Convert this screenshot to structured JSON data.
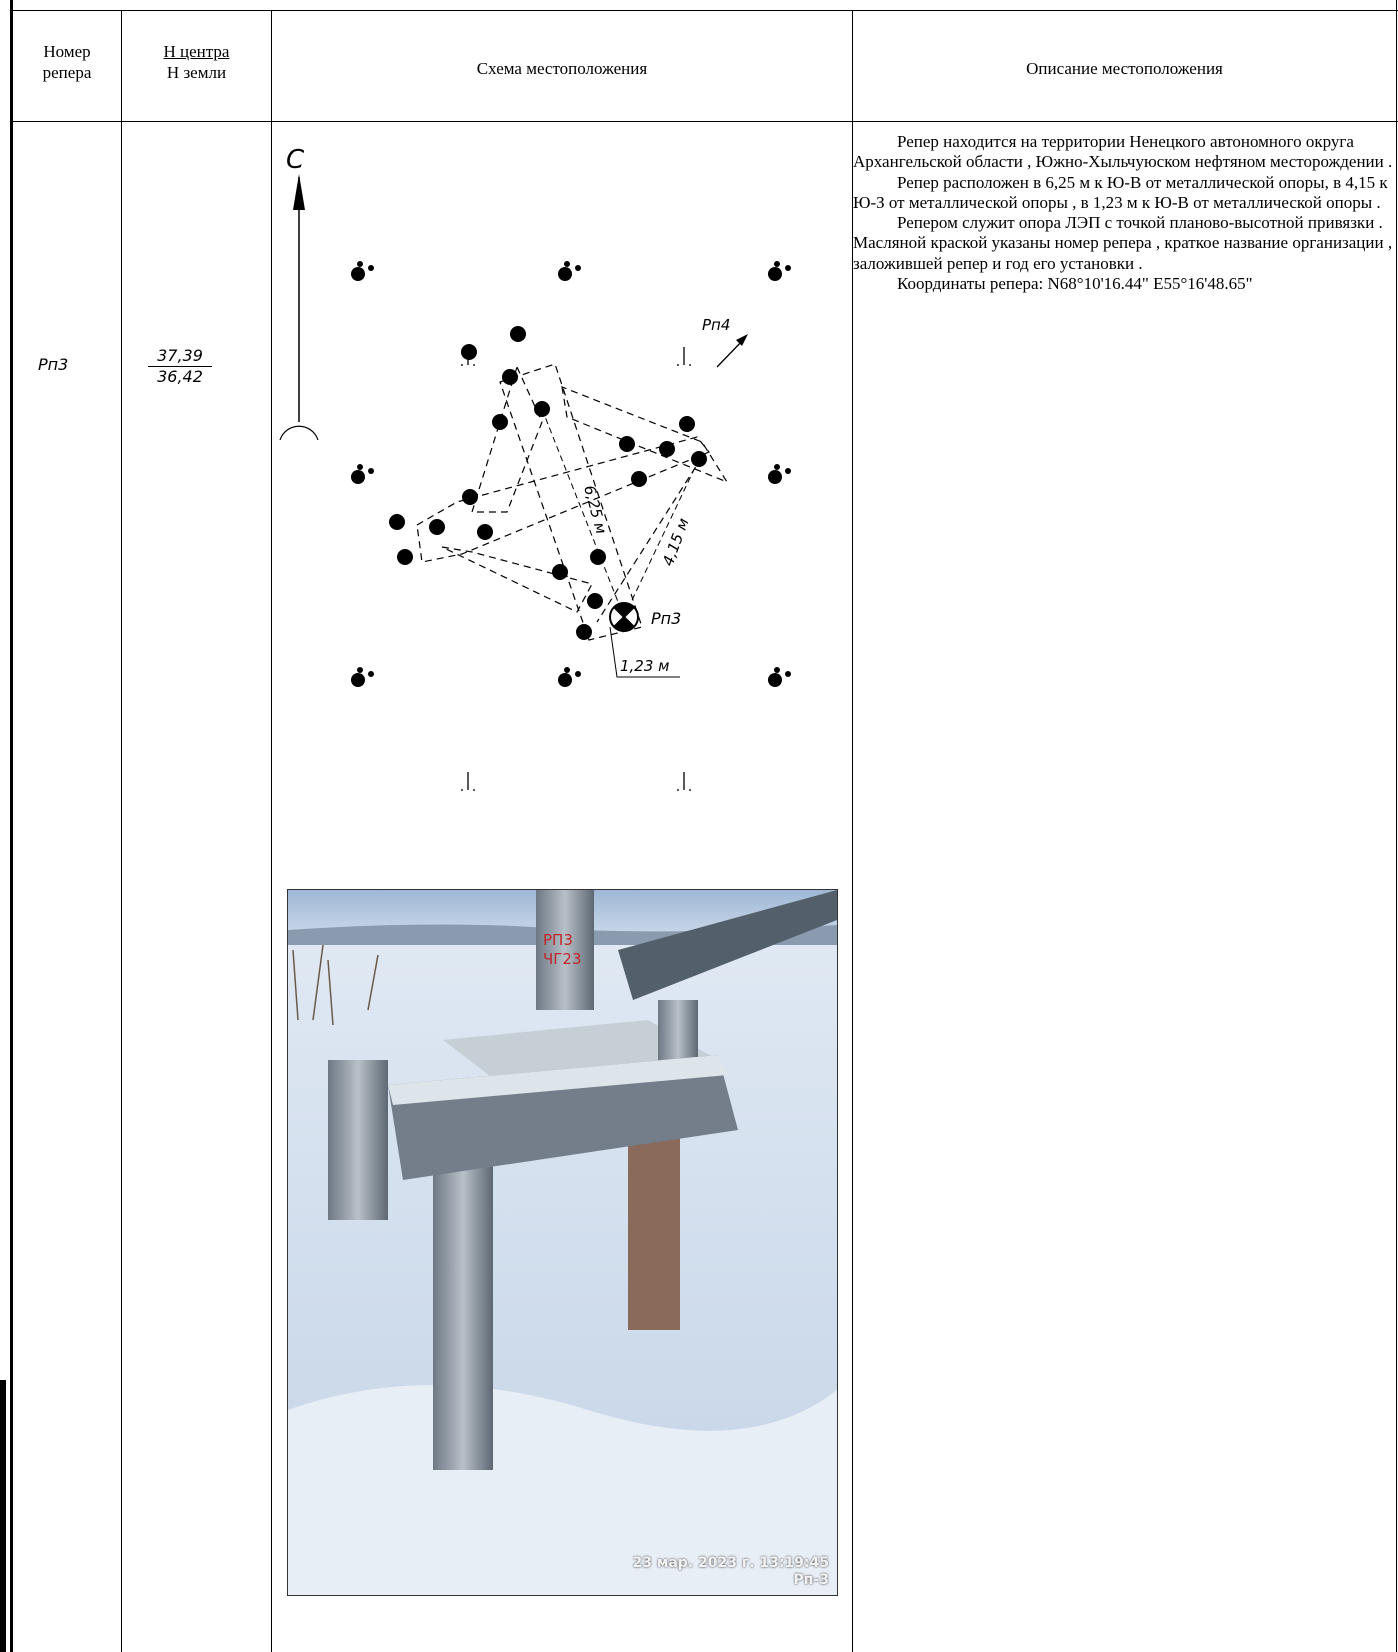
{
  "table": {
    "headers": {
      "col1": [
        "Номер",
        "репера"
      ],
      "col2_top": "Н центра",
      "col2_bottom": "Н земли",
      "col3": "Схема местоположения",
      "col4": "Описание местоположения"
    },
    "row": {
      "benchmark_id": "Рп3",
      "h_center": "37,39",
      "h_ground": "36,42"
    }
  },
  "scheme": {
    "north_label": "С",
    "target_label": "Рп3",
    "next_label": "Рп4",
    "dim_625": "6,25 м",
    "dim_415": "4,15 м",
    "dim_123": "1,23 м"
  },
  "description": {
    "paragraphs": [
      "Репер находится на территории Ненецкого автономного округа Архангельской области , Южно-Хыльчуюском нефтяном месторождении .",
      "Репер расположен в 6,25 м к Ю-В от металлической опоры, в 4,15 к Ю-З от металлической опоры , в 1,23 м к Ю-В от металлической опоры .",
      "Репером служит опора ЛЭП с точкой планово-высотной привязки . Масляной краской указаны номер репера , краткое название организации , заложившей репер и год его установки .",
      "Координаты репера: N68°10'16.44\" E55°16'48.65\""
    ]
  },
  "photo": {
    "marking_line1": "РП3",
    "marking_line2": "ЧГ23",
    "timestamp": "23 мар. 2023 г. 13:19:45",
    "caption": "Рп-3"
  }
}
